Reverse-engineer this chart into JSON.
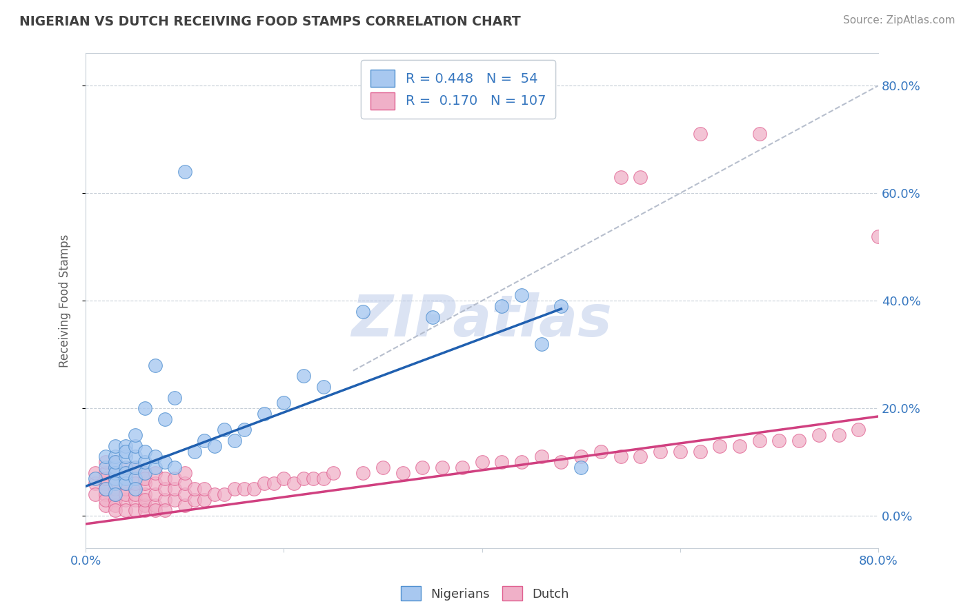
{
  "title": "NIGERIAN VS DUTCH RECEIVING FOOD STAMPS CORRELATION CHART",
  "source_text": "Source: ZipAtlas.com",
  "ylabel": "Receiving Food Stamps",
  "yaxis_ticks": [
    0.0,
    0.2,
    0.4,
    0.6,
    0.8
  ],
  "yaxis_labels": [
    "0.0%",
    "20.0%",
    "40.0%",
    "60.0%",
    "80.0%"
  ],
  "xlim": [
    0.0,
    0.8
  ],
  "ylim": [
    -0.06,
    0.86
  ],
  "legend_label1": "R = 0.448   N =  54",
  "legend_label2": "R =  0.170   N = 107",
  "watermark": "ZIPatlas",
  "watermark_color": "#b8c8e8",
  "nigerians_face_color": "#a8c8f0",
  "nigerians_edge_color": "#5090d0",
  "dutch_face_color": "#f0b0c8",
  "dutch_edge_color": "#e06090",
  "nigerians_line_color": "#2060b0",
  "dutch_line_color": "#d04080",
  "ref_line_color": "#b0b8c8",
  "legend_text_color": "#3070c0",
  "title_color": "#404040",
  "background_color": "#ffffff",
  "nig_line_x0": 0.0,
  "nig_line_y0": 0.055,
  "nig_line_x1": 0.48,
  "nig_line_y1": 0.385,
  "dutch_line_x0": 0.0,
  "dutch_line_y0": -0.015,
  "dutch_line_x1": 0.8,
  "dutch_line_y1": 0.185,
  "ref_line_x0": 0.27,
  "ref_line_y0": 0.27,
  "ref_line_x1": 0.8,
  "ref_line_y1": 0.8,
  "nigerians_x": [
    0.01,
    0.02,
    0.02,
    0.02,
    0.03,
    0.03,
    0.03,
    0.03,
    0.03,
    0.03,
    0.03,
    0.03,
    0.04,
    0.04,
    0.04,
    0.04,
    0.04,
    0.04,
    0.04,
    0.05,
    0.05,
    0.05,
    0.05,
    0.05,
    0.05,
    0.06,
    0.06,
    0.06,
    0.06,
    0.07,
    0.07,
    0.07,
    0.08,
    0.08,
    0.09,
    0.09,
    0.1,
    0.11,
    0.12,
    0.13,
    0.14,
    0.15,
    0.16,
    0.18,
    0.2,
    0.22,
    0.24,
    0.28,
    0.35,
    0.42,
    0.44,
    0.46,
    0.48,
    0.5
  ],
  "nigerians_y": [
    0.07,
    0.09,
    0.11,
    0.05,
    0.07,
    0.09,
    0.11,
    0.13,
    0.08,
    0.06,
    0.1,
    0.04,
    0.07,
    0.09,
    0.11,
    0.13,
    0.06,
    0.08,
    0.12,
    0.07,
    0.09,
    0.11,
    0.13,
    0.05,
    0.15,
    0.08,
    0.1,
    0.12,
    0.2,
    0.09,
    0.11,
    0.28,
    0.1,
    0.18,
    0.09,
    0.22,
    0.64,
    0.12,
    0.14,
    0.13,
    0.16,
    0.14,
    0.16,
    0.19,
    0.21,
    0.26,
    0.24,
    0.38,
    0.37,
    0.39,
    0.41,
    0.32,
    0.39,
    0.09
  ],
  "dutch_x": [
    0.01,
    0.01,
    0.01,
    0.02,
    0.02,
    0.02,
    0.02,
    0.02,
    0.02,
    0.02,
    0.02,
    0.03,
    0.03,
    0.03,
    0.03,
    0.03,
    0.03,
    0.03,
    0.03,
    0.03,
    0.03,
    0.04,
    0.04,
    0.04,
    0.04,
    0.04,
    0.04,
    0.04,
    0.04,
    0.05,
    0.05,
    0.05,
    0.05,
    0.05,
    0.05,
    0.05,
    0.06,
    0.06,
    0.06,
    0.06,
    0.06,
    0.06,
    0.06,
    0.07,
    0.07,
    0.07,
    0.07,
    0.07,
    0.08,
    0.08,
    0.08,
    0.08,
    0.09,
    0.09,
    0.09,
    0.1,
    0.1,
    0.1,
    0.1,
    0.11,
    0.11,
    0.12,
    0.12,
    0.13,
    0.14,
    0.15,
    0.16,
    0.17,
    0.18,
    0.19,
    0.2,
    0.21,
    0.22,
    0.23,
    0.24,
    0.25,
    0.28,
    0.3,
    0.32,
    0.34,
    0.36,
    0.38,
    0.4,
    0.42,
    0.44,
    0.46,
    0.48,
    0.5,
    0.52,
    0.54,
    0.56,
    0.58,
    0.6,
    0.62,
    0.64,
    0.66,
    0.68,
    0.7,
    0.72,
    0.74,
    0.76,
    0.78,
    0.54,
    0.56,
    0.62,
    0.68,
    0.8
  ],
  "dutch_y": [
    0.06,
    0.04,
    0.08,
    0.04,
    0.06,
    0.08,
    0.1,
    0.02,
    0.03,
    0.05,
    0.07,
    0.03,
    0.05,
    0.07,
    0.09,
    0.02,
    0.04,
    0.06,
    0.08,
    0.1,
    0.01,
    0.03,
    0.05,
    0.07,
    0.09,
    0.01,
    0.04,
    0.06,
    0.08,
    0.03,
    0.05,
    0.07,
    0.01,
    0.04,
    0.06,
    0.09,
    0.02,
    0.04,
    0.06,
    0.08,
    0.01,
    0.03,
    0.07,
    0.02,
    0.04,
    0.06,
    0.08,
    0.01,
    0.03,
    0.05,
    0.07,
    0.01,
    0.03,
    0.05,
    0.07,
    0.02,
    0.04,
    0.06,
    0.08,
    0.03,
    0.05,
    0.03,
    0.05,
    0.04,
    0.04,
    0.05,
    0.05,
    0.05,
    0.06,
    0.06,
    0.07,
    0.06,
    0.07,
    0.07,
    0.07,
    0.08,
    0.08,
    0.09,
    0.08,
    0.09,
    0.09,
    0.09,
    0.1,
    0.1,
    0.1,
    0.11,
    0.1,
    0.11,
    0.12,
    0.11,
    0.11,
    0.12,
    0.12,
    0.12,
    0.13,
    0.13,
    0.14,
    0.14,
    0.14,
    0.15,
    0.15,
    0.16,
    0.63,
    0.63,
    0.71,
    0.71,
    0.52
  ]
}
